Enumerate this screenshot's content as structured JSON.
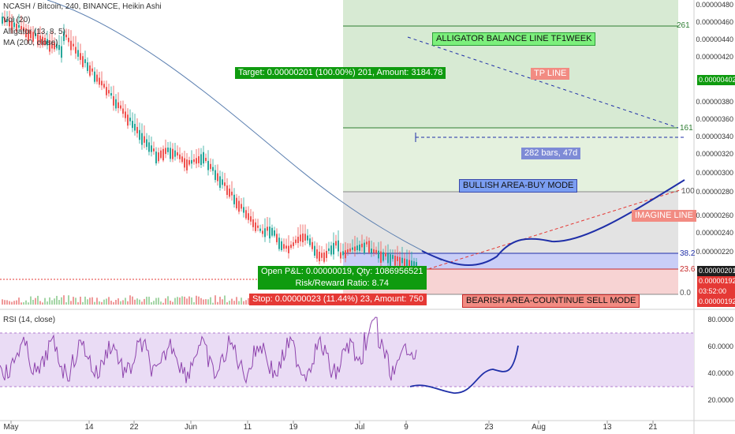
{
  "header": {
    "symbol_line": "NCASH / Bitcoin, 240, BINANCE, Heikin Ashi",
    "vol": "Vol (20)",
    "alligator": "Alligator (13, 8, 5)",
    "ma": "MA (200, close)",
    "rsi": "RSI (14, close)"
  },
  "annotations": {
    "target": "Target: 0.00000201 (100.00%) 201, Amount: 3184.78",
    "open_pl": "Open P&L: 0.00000019, Qty: 1086956521",
    "risk_reward": "Risk/Reward Ratio: 8.74",
    "stop": "Stop: 0.00000023 (11.44%) 23, Amount: 750",
    "alligator_line": "ALLIGATOR BALANCE LINE TF1WEEK",
    "tp_line": "TP LINE",
    "bars_range": "282 bars, 47d",
    "bullish": "BULLISH AREA-BUY MODE",
    "bearish": "BEARISH AREA-COUNTINUE SELL MODE",
    "imagine": "IMAGINE LINE"
  },
  "fib": {
    "f261": "261",
    "f161": "161",
    "f100": "100",
    "f38": "38.2",
    "f23": "23.6",
    "f0": "0.0"
  },
  "price_axis": {
    "ticks": [
      "0.00000480",
      "0.00000460",
      "0.00000440",
      "0.00000420",
      "0.00000380",
      "0.00000360",
      "0.00000340",
      "0.00000320",
      "0.00000300",
      "0.00000280",
      "0.00000260",
      "0.00000240",
      "0.00000220"
    ],
    "tag_top": "0.00000402",
    "tag_price": "0.00000201",
    "tag_low1": "0.00000192",
    "tag_time": "03:52:00",
    "tag_low2": "0.00000192"
  },
  "rsi_axis": {
    "ticks": [
      "80.0000",
      "60.0000",
      "40.0000",
      "20.0000"
    ]
  },
  "time_axis": {
    "labels": [
      "May",
      "14",
      "22",
      "Jun",
      "11",
      "19",
      "Jul",
      "9",
      "23",
      "Aug",
      "13",
      "21"
    ]
  },
  "colors": {
    "up": "#26a69a",
    "down": "#ef5350",
    "green_fill": "#2e9b3a",
    "red_fill": "#e53935",
    "blue_proj": "#1f2fa8",
    "ma": "#5b7fb0",
    "rsi": "#8e44ad"
  },
  "chart_data": {
    "type": "line",
    "title": "NCASH / Bitcoin, 240, BINANCE, Heikin Ashi",
    "price_levels": {
      "target": 2.01e-06,
      "current": 2.01e-06,
      "stop_low": 1.92e-06,
      "fib_0": 1.92e-06,
      "tp_tag": 4.02e-06
    },
    "projection_y": [
      2.28e-06,
      2.14e-06,
      2.16e-06,
      2.36e-06,
      2.4e-06,
      2.38e-06,
      2.44e-06,
      2.58e-06,
      2.72e-06,
      2.9e-06,
      3.01e-06
    ],
    "rsi_range": [
      20,
      80
    ],
    "rsi_bands": [
      70,
      30
    ]
  }
}
